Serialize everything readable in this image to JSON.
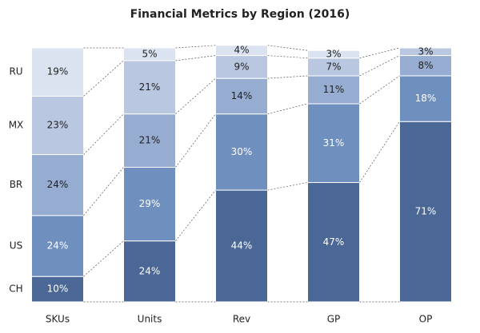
{
  "chart_data": {
    "type": "stacked-bar",
    "title": "Financial Metrics by Region (2016)",
    "categories": [
      "SKUs",
      "Units",
      "Rev",
      "GP",
      "OP"
    ],
    "ylim": [
      0,
      100
    ],
    "series": [
      {
        "name": "CH",
        "color": "#4a6796",
        "values": [
          10,
          24,
          44,
          47,
          71
        ],
        "value_labels": [
          "10%",
          "24%",
          "44%",
          "47%",
          "71%"
        ]
      },
      {
        "name": "US",
        "color": "#6f8fbf",
        "values": [
          24,
          29,
          30,
          31,
          18
        ],
        "value_labels": [
          "24%",
          "29%",
          "30%",
          "31%",
          "18%"
        ]
      },
      {
        "name": "BR",
        "color": "#96acd0",
        "values": [
          24,
          21,
          14,
          11,
          8
        ],
        "value_labels": [
          "24%",
          "21%",
          "14%",
          "11%",
          "8%"
        ]
      },
      {
        "name": "MX",
        "color": "#b9c7e0",
        "values": [
          23,
          21,
          9,
          7,
          3
        ],
        "value_labels": [
          "23%",
          "21%",
          "9%",
          "7%",
          "3%"
        ]
      },
      {
        "name": "RU",
        "color": "#dbe3f0",
        "values": [
          19,
          5,
          4,
          3,
          null
        ],
        "value_labels": [
          "19%",
          "5%",
          "4%",
          "3%",
          null
        ]
      }
    ]
  }
}
